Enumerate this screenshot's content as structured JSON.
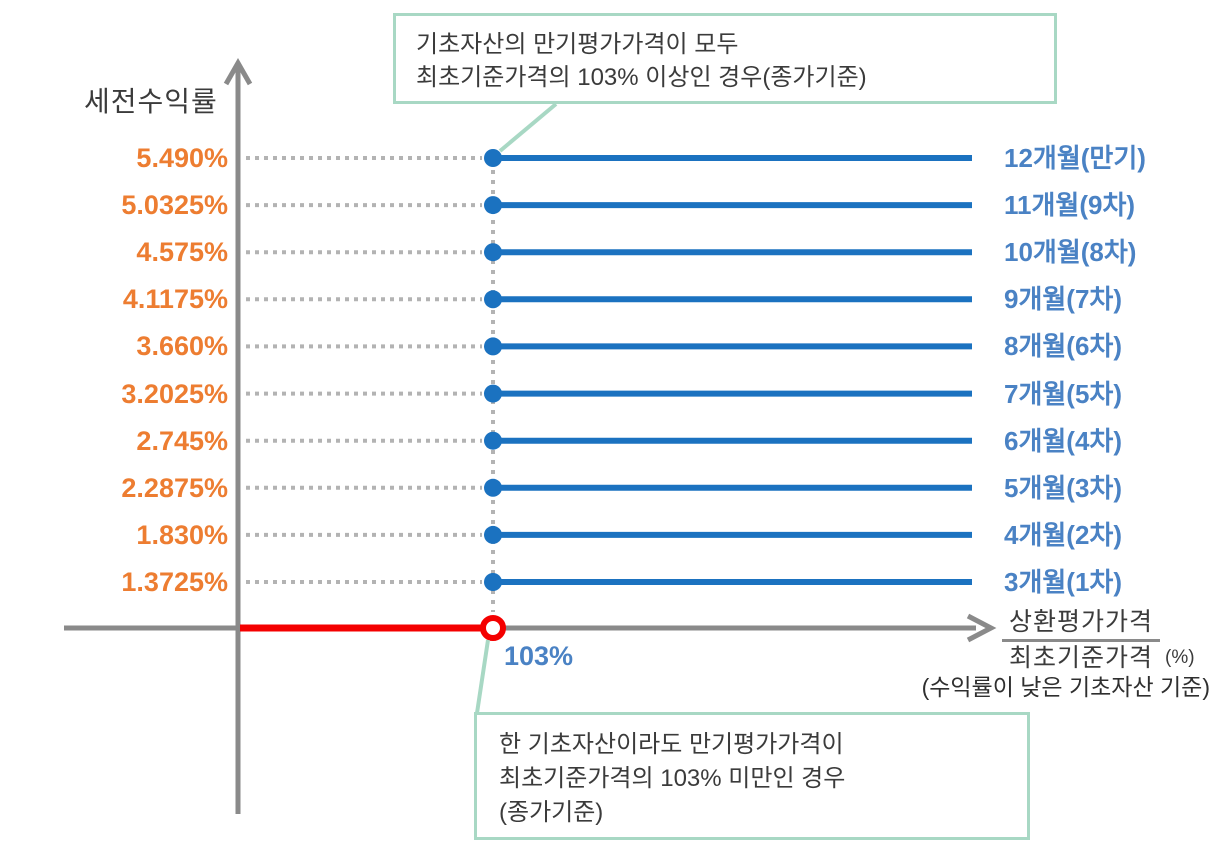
{
  "chart_data": {
    "type": "line",
    "title": "",
    "y_axis_title": "세전수익률",
    "x_axis": {
      "fraction_numerator": "상환평가가격",
      "fraction_denominator": "최초기준가격",
      "unit": "(%)",
      "note": "(수익률이 낮은 기초자산 기준)",
      "threshold_label": "103%"
    },
    "rows": [
      {
        "rate": "5.490%",
        "period": "12개월(만기)"
      },
      {
        "rate": "5.0325%",
        "period": "11개월(9차)"
      },
      {
        "rate": "4.575%",
        "period": "10개월(8차)"
      },
      {
        "rate": "4.1175%",
        "period": "9개월(7차)"
      },
      {
        "rate": "3.660%",
        "period": "8개월(6차)"
      },
      {
        "rate": "3.2025%",
        "period": "7개월(5차)"
      },
      {
        "rate": "2.745%",
        "period": "6개월(4차)"
      },
      {
        "rate": "2.2875%",
        "period": "5개월(3차)"
      },
      {
        "rate": "1.830%",
        "period": "4개월(2차)"
      },
      {
        "rate": "1.3725%",
        "period": "3개월(1차)"
      }
    ],
    "annotations": {
      "top_callout": [
        "기초자산의 만기평가가격이 모두",
        "최초기준가격의 103% 이상인 경우(종가기준)"
      ],
      "bottom_callout": [
        "한 기초자산이라도 만기평가가격이",
        "최초기준가격의 103% 미만인 경우",
        "(종가기준)"
      ]
    },
    "layout_hints": {
      "threshold_x_percent": "103%",
      "lines_start_at_threshold": true,
      "red_segment_below_threshold": true,
      "grid": "off",
      "row_count": 10
    }
  },
  "colors": {
    "rate_orange": "#ED7D31",
    "line_blue": "#1B72C0",
    "label_blue": "#4A82C4",
    "loss_red": "#F40000",
    "axis_gray": "#8A8A8A",
    "dotted_gray": "#B3B3B3",
    "callout_mint": "#A8D8C4",
    "text_dark": "#3B3B3B"
  }
}
